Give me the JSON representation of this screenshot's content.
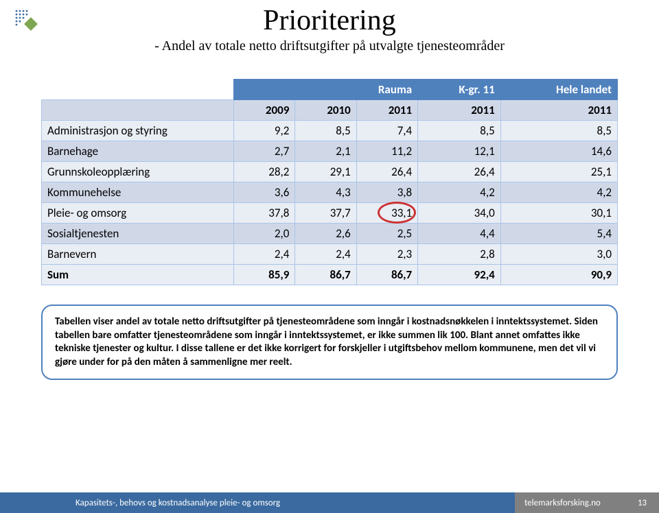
{
  "title": "Prioritering",
  "subtitle": "- Andel av totale netto driftsutgifter på utvalgte tjenesteområder",
  "table": {
    "header_group": {
      "col1_label": "Rauma",
      "col2_label": "K-gr. 11",
      "col3_label": "Hele landet"
    },
    "year_header": [
      "2009",
      "2010",
      "2011",
      "2011",
      "2011"
    ],
    "rows": [
      {
        "label": "Administrasjon og styring",
        "vals": [
          "9,2",
          "8,5",
          "7,4",
          "8,5",
          "8,5"
        ]
      },
      {
        "label": "Barnehage",
        "vals": [
          "2,7",
          "2,1",
          "11,2",
          "12,1",
          "14,6"
        ]
      },
      {
        "label": "Grunnskoleopplæring",
        "vals": [
          "28,2",
          "29,1",
          "26,4",
          "26,4",
          "25,1"
        ]
      },
      {
        "label": "Kommunehelse",
        "vals": [
          "3,6",
          "4,3",
          "3,8",
          "4,2",
          "4,2"
        ]
      },
      {
        "label": "Pleie- og omsorg",
        "vals": [
          "37,8",
          "37,7",
          "33,1",
          "34,0",
          "30,1"
        ],
        "circle_col": 2
      },
      {
        "label": "Sosialtjenesten",
        "vals": [
          "2,0",
          "2,6",
          "2,5",
          "4,4",
          "5,4"
        ]
      },
      {
        "label": "Barnevern",
        "vals": [
          "2,4",
          "2,4",
          "2,3",
          "2,8",
          "3,0"
        ]
      },
      {
        "label": "Sum",
        "vals": [
          "85,9",
          "86,7",
          "86,7",
          "92,4",
          "90,9"
        ],
        "is_sum": true
      }
    ],
    "header_bg": "#4f81bd",
    "header_fg": "#ffffff",
    "row_odd_bg": "#e9edf4",
    "row_even_bg": "#d0d8e8",
    "border_color": "#a9c5e8",
    "circle_color": "#cc3333"
  },
  "info_text": "Tabellen viser andel av totale netto driftsutgifter på tjenesteområdene som inngår i kostnadsnøkkelen i inntektssystemet. Siden tabellen bare omfatter tjenesteområdene som inngår i inntektssystemet, er ikke summen lik 100. Blant annet omfattes ikke tekniske tjenester og kultur. I disse tallene er det ikke korrigert for forskjeller i utgiftsbehov mellom kommunene, men det vil vi gjøre under for på den måten å sammenligne mer reelt.",
  "footer": {
    "left": "Kapasitets-, behovs og kostnadsanalyse pleie- og omsorg",
    "right": "telemarksforsking.no",
    "page": "13",
    "left_bg": "#3b6aa0",
    "right_bg": "#808080"
  },
  "logo": {
    "diamond_color": "#7fa651",
    "dots_color": "#3b6aa0"
  }
}
